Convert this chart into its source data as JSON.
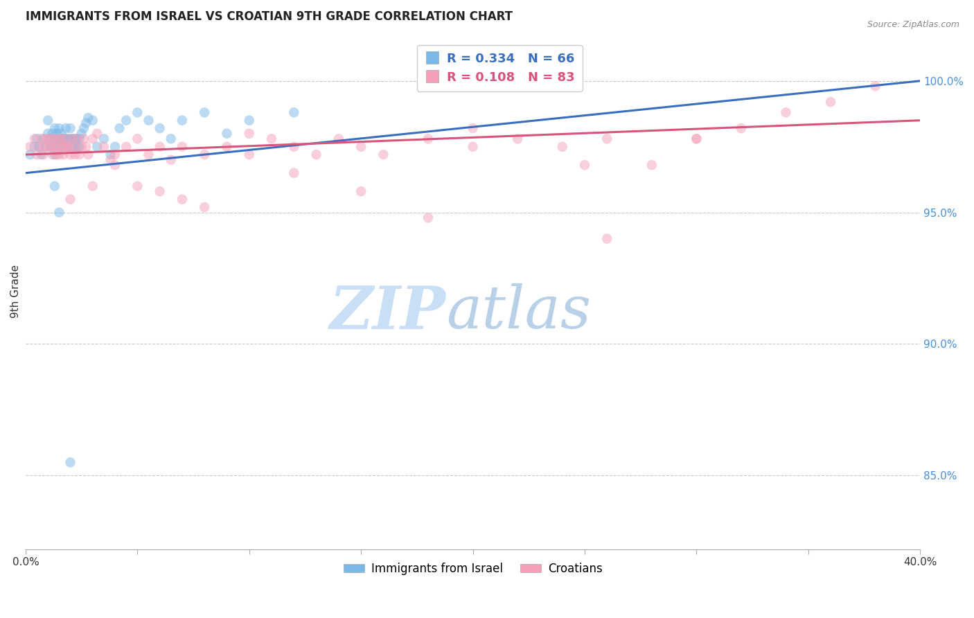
{
  "title": "IMMIGRANTS FROM ISRAEL VS CROATIAN 9TH GRADE CORRELATION CHART",
  "source": "Source: ZipAtlas.com",
  "ylabel": "9th Grade",
  "ylabel_right_vals": [
    0.85,
    0.9,
    0.95,
    1.0
  ],
  "ylabel_right_labels": [
    "85.0%",
    "90.0%",
    "95.0%",
    "100.0%"
  ],
  "xmin": 0.0,
  "xmax": 0.4,
  "ymin": 0.822,
  "ymax": 1.018,
  "color_blue": "#7ab8e8",
  "color_pink": "#f4a0b8",
  "line_blue": "#3a6fbf",
  "line_pink": "#d9547a",
  "grid_color": "#c8c8c8",
  "background": "#ffffff",
  "label_blue": "Immigrants from Israel",
  "label_pink": "Croatians",
  "blue_x": [
    0.002,
    0.004,
    0.005,
    0.006,
    0.007,
    0.008,
    0.009,
    0.01,
    0.01,
    0.011,
    0.011,
    0.012,
    0.012,
    0.013,
    0.013,
    0.013,
    0.014,
    0.014,
    0.014,
    0.015,
    0.015,
    0.015,
    0.016,
    0.016,
    0.016,
    0.017,
    0.017,
    0.018,
    0.018,
    0.018,
    0.019,
    0.019,
    0.02,
    0.02,
    0.02,
    0.021,
    0.021,
    0.022,
    0.022,
    0.023,
    0.023,
    0.024,
    0.024,
    0.025,
    0.026,
    0.027,
    0.028,
    0.03,
    0.032,
    0.035,
    0.038,
    0.04,
    0.042,
    0.045,
    0.05,
    0.055,
    0.06,
    0.065,
    0.07,
    0.08,
    0.09,
    0.1,
    0.12,
    0.015,
    0.013,
    0.02
  ],
  "blue_y": [
    0.972,
    0.975,
    0.978,
    0.975,
    0.972,
    0.978,
    0.975,
    0.98,
    0.985,
    0.975,
    0.978,
    0.98,
    0.975,
    0.972,
    0.978,
    0.982,
    0.975,
    0.978,
    0.98,
    0.975,
    0.978,
    0.982,
    0.975,
    0.978,
    0.98,
    0.975,
    0.978,
    0.975,
    0.978,
    0.982,
    0.975,
    0.978,
    0.975,
    0.978,
    0.982,
    0.975,
    0.978,
    0.975,
    0.978,
    0.975,
    0.978,
    0.975,
    0.978,
    0.98,
    0.982,
    0.984,
    0.986,
    0.985,
    0.975,
    0.978,
    0.972,
    0.975,
    0.982,
    0.985,
    0.988,
    0.985,
    0.982,
    0.978,
    0.985,
    0.988,
    0.98,
    0.985,
    0.988,
    0.95,
    0.96,
    0.855
  ],
  "pink_x": [
    0.002,
    0.004,
    0.005,
    0.006,
    0.007,
    0.008,
    0.008,
    0.009,
    0.01,
    0.01,
    0.011,
    0.012,
    0.012,
    0.013,
    0.013,
    0.014,
    0.014,
    0.015,
    0.015,
    0.016,
    0.016,
    0.017,
    0.017,
    0.018,
    0.018,
    0.019,
    0.02,
    0.02,
    0.021,
    0.022,
    0.022,
    0.023,
    0.024,
    0.025,
    0.026,
    0.027,
    0.028,
    0.03,
    0.032,
    0.035,
    0.038,
    0.04,
    0.045,
    0.05,
    0.055,
    0.06,
    0.065,
    0.07,
    0.08,
    0.09,
    0.1,
    0.11,
    0.12,
    0.13,
    0.14,
    0.15,
    0.16,
    0.18,
    0.2,
    0.22,
    0.24,
    0.26,
    0.28,
    0.3,
    0.32,
    0.34,
    0.36,
    0.38,
    0.05,
    0.06,
    0.08,
    0.1,
    0.15,
    0.2,
    0.25,
    0.3,
    0.02,
    0.03,
    0.04,
    0.07,
    0.12,
    0.18,
    0.26
  ],
  "pink_y": [
    0.975,
    0.978,
    0.972,
    0.975,
    0.978,
    0.972,
    0.975,
    0.978,
    0.975,
    0.978,
    0.975,
    0.978,
    0.972,
    0.975,
    0.978,
    0.972,
    0.975,
    0.978,
    0.972,
    0.975,
    0.978,
    0.975,
    0.972,
    0.975,
    0.978,
    0.975,
    0.972,
    0.975,
    0.978,
    0.972,
    0.975,
    0.978,
    0.972,
    0.975,
    0.978,
    0.975,
    0.972,
    0.978,
    0.98,
    0.975,
    0.97,
    0.968,
    0.975,
    0.978,
    0.972,
    0.975,
    0.97,
    0.975,
    0.972,
    0.975,
    0.98,
    0.978,
    0.975,
    0.972,
    0.978,
    0.975,
    0.972,
    0.978,
    0.975,
    0.978,
    0.975,
    0.978,
    0.968,
    0.978,
    0.982,
    0.988,
    0.992,
    0.998,
    0.96,
    0.958,
    0.952,
    0.972,
    0.958,
    0.982,
    0.968,
    0.978,
    0.955,
    0.96,
    0.972,
    0.955,
    0.965,
    0.948,
    0.94
  ],
  "blue_line_x": [
    0.0,
    0.4
  ],
  "blue_line_y": [
    0.965,
    1.0
  ],
  "pink_line_x": [
    0.0,
    0.4
  ],
  "pink_line_y": [
    0.972,
    0.985
  ],
  "marker_size": 110,
  "alpha": 0.5,
  "watermark_zip_color": "#c8dff5",
  "watermark_atlas_color": "#b8d0e8",
  "legend_fontsize": 13,
  "title_fontsize": 12
}
